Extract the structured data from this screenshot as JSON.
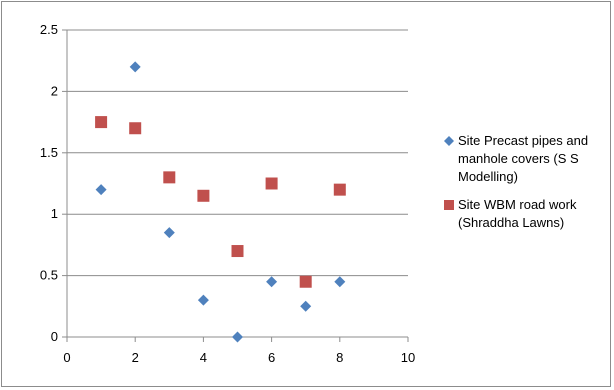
{
  "chart_data": {
    "type": "scatter",
    "title": "",
    "xlabel": "",
    "ylabel": "",
    "xlim": [
      0,
      10
    ],
    "ylim": [
      0,
      2.5
    ],
    "x_ticks": [
      "0",
      "2",
      "4",
      "6",
      "8",
      "10"
    ],
    "y_ticks": [
      "0",
      "0.5",
      "1",
      "1.5",
      "2",
      "2.5"
    ],
    "grid": "horizontal",
    "legend_position": "right",
    "series": [
      {
        "name": "Site Precast pipes and manhole covers (S S Modelling)",
        "marker": "diamond",
        "color": "#4f81bd",
        "points": [
          [
            1,
            1.2
          ],
          [
            2,
            2.2
          ],
          [
            3,
            0.85
          ],
          [
            4,
            0.3
          ],
          [
            5,
            0.0
          ],
          [
            6,
            0.45
          ],
          [
            7,
            0.25
          ],
          [
            8,
            0.45
          ]
        ]
      },
      {
        "name": "Site WBM road work (Shraddha Lawns)",
        "marker": "square",
        "color": "#c0504d",
        "points": [
          [
            1,
            1.75
          ],
          [
            2,
            1.7
          ],
          [
            3,
            1.3
          ],
          [
            4,
            1.15
          ],
          [
            5,
            0.7
          ],
          [
            6,
            1.25
          ],
          [
            7,
            0.45
          ],
          [
            8,
            1.2
          ]
        ]
      }
    ]
  }
}
